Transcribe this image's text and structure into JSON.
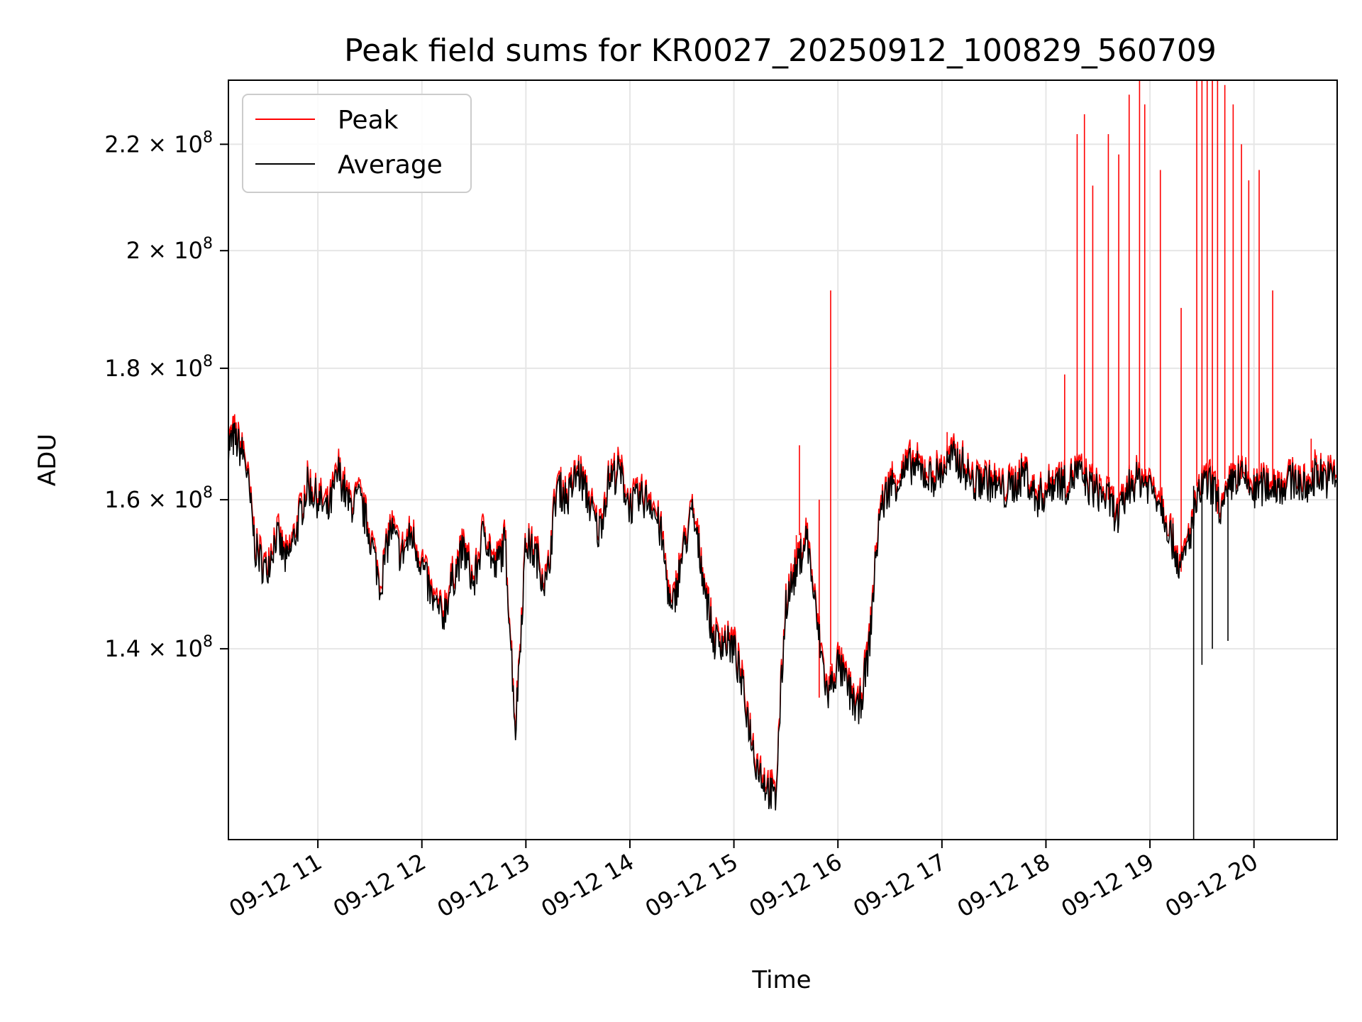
{
  "chart_data": {
    "type": "line",
    "title": "Peak field sums for KR0027_20250912_100829_560709",
    "xlabel": "Time",
    "ylabel": "ADU",
    "x_range": [
      "09-12 10:08",
      "09-12 20:48"
    ],
    "xlim_hours": [
      10.14,
      20.8
    ],
    "ylim": [
      118000000,
      233000000
    ],
    "y_scale": "log",
    "grid": true,
    "legend": "top-left",
    "x_ticks": [
      "09-12 11",
      "09-12 12",
      "09-12 13",
      "09-12 14",
      "09-12 15",
      "09-12 16",
      "09-12 17",
      "09-12 18",
      "09-12 19",
      "09-12 20"
    ],
    "x_tick_hours": [
      11,
      12,
      13,
      14,
      15,
      16,
      17,
      18,
      19,
      20
    ],
    "y_ticks": [
      {
        "value": 140000000,
        "mantissa": "1.4",
        "exp": "8"
      },
      {
        "value": 160000000,
        "mantissa": "1.6",
        "exp": "8"
      },
      {
        "value": 180000000,
        "mantissa": "1.8",
        "exp": "8"
      },
      {
        "value": 200000000,
        "mantissa": "2",
        "exp": "8"
      },
      {
        "value": 220000000,
        "mantissa": "2.2",
        "exp": "8"
      }
    ],
    "series": [
      {
        "name": "Peak",
        "color": "#ff0000"
      },
      {
        "name": "Average",
        "color": "#000000"
      }
    ],
    "x_hours": [
      10.14,
      10.2,
      10.3,
      10.4,
      10.5,
      10.6,
      10.7,
      10.8,
      10.9,
      11.0,
      11.1,
      11.2,
      11.3,
      11.4,
      11.5,
      11.6,
      11.7,
      11.8,
      11.9,
      12.0,
      12.1,
      12.2,
      12.3,
      12.4,
      12.5,
      12.6,
      12.7,
      12.8,
      12.9,
      13.0,
      13.1,
      13.2,
      13.3,
      13.4,
      13.5,
      13.6,
      13.7,
      13.8,
      13.9,
      14.0,
      14.1,
      14.2,
      14.3,
      14.4,
      14.5,
      14.6,
      14.7,
      14.8,
      14.9,
      15.0,
      15.1,
      15.2,
      15.3,
      15.4,
      15.5,
      15.6,
      15.7,
      15.8,
      15.9,
      16.0,
      16.1,
      16.2,
      16.3,
      16.4,
      16.5,
      16.6,
      16.7,
      16.8,
      16.9,
      17.0,
      17.1,
      17.2,
      17.3,
      17.4,
      17.5,
      17.6,
      17.7,
      17.8,
      17.9,
      18.0,
      18.1,
      18.2,
      18.3,
      18.4,
      18.5,
      18.6,
      18.7,
      18.8,
      18.9,
      19.0,
      19.1,
      19.2,
      19.3,
      19.4,
      19.5,
      19.6,
      19.7,
      19.8,
      19.9,
      20.0,
      20.1,
      20.2,
      20.3,
      20.4,
      20.5,
      20.6,
      20.7,
      20.8
    ],
    "average_values": [
      168000000,
      169000000,
      166000000,
      153000000,
      150000000,
      155000000,
      151000000,
      156000000,
      162000000,
      160000000,
      158000000,
      164000000,
      159000000,
      160000000,
      155000000,
      148000000,
      156000000,
      152000000,
      155000000,
      151000000,
      146000000,
      144000000,
      149000000,
      153000000,
      148000000,
      156000000,
      150000000,
      154000000,
      130000000,
      154000000,
      152000000,
      148000000,
      162000000,
      160000000,
      164000000,
      160000000,
      155000000,
      163000000,
      164000000,
      159000000,
      160000000,
      160000000,
      155000000,
      144000000,
      152000000,
      158000000,
      150000000,
      141000000,
      141000000,
      140000000,
      134000000,
      127000000,
      124000000,
      122000000,
      146000000,
      150000000,
      155000000,
      143000000,
      134000000,
      138000000,
      135000000,
      132000000,
      140000000,
      158000000,
      162000000,
      163000000,
      165000000,
      164000000,
      163000000,
      164000000,
      166000000,
      165000000,
      162000000,
      163000000,
      162000000,
      161000000,
      162000000,
      164000000,
      160000000,
      161000000,
      163000000,
      162000000,
      164000000,
      162000000,
      161000000,
      160000000,
      157000000,
      162000000,
      163000000,
      162000000,
      160000000,
      155000000,
      150000000,
      156000000,
      162000000,
      162000000,
      158000000,
      163000000,
      163000000,
      161000000,
      162000000,
      162000000,
      162000000,
      163000000,
      161000000,
      164000000,
      163000000,
      163000000
    ],
    "peak_spikes": [
      {
        "x_hours": 15.6,
        "value": 155000000
      },
      {
        "x_hours": 15.63,
        "value": 168000000
      },
      {
        "x_hours": 15.82,
        "value": 160000000
      },
      {
        "x_hours": 15.93,
        "value": 193000000
      },
      {
        "x_hours": 17.05,
        "value": 170000000
      },
      {
        "x_hours": 18.18,
        "value": 179000000
      },
      {
        "x_hours": 18.3,
        "value": 222000000
      },
      {
        "x_hours": 18.37,
        "value": 226000000
      },
      {
        "x_hours": 18.45,
        "value": 212000000
      },
      {
        "x_hours": 18.6,
        "value": 222000000
      },
      {
        "x_hours": 18.7,
        "value": 218000000
      },
      {
        "x_hours": 18.8,
        "value": 230000000
      },
      {
        "x_hours": 18.9,
        "value": 233000000
      },
      {
        "x_hours": 18.95,
        "value": 228000000
      },
      {
        "x_hours": 19.1,
        "value": 215000000
      },
      {
        "x_hours": 19.3,
        "value": 190000000
      },
      {
        "x_hours": 19.45,
        "value": 233000000
      },
      {
        "x_hours": 19.5,
        "value": 233000000
      },
      {
        "x_hours": 19.55,
        "value": 233000000
      },
      {
        "x_hours": 19.6,
        "value": 233000000
      },
      {
        "x_hours": 19.65,
        "value": 233000000
      },
      {
        "x_hours": 19.72,
        "value": 232000000
      },
      {
        "x_hours": 19.8,
        "value": 228000000
      },
      {
        "x_hours": 19.88,
        "value": 220000000
      },
      {
        "x_hours": 19.95,
        "value": 213000000
      },
      {
        "x_hours": 20.05,
        "value": 215000000
      },
      {
        "x_hours": 20.18,
        "value": 193000000
      },
      {
        "x_hours": 20.55,
        "value": 169000000
      },
      {
        "x_hours": 20.8,
        "value": 168000000
      }
    ],
    "average_dips": [
      {
        "x_hours": 19.42,
        "value": 118000000
      },
      {
        "x_hours": 19.5,
        "value": 138000000
      },
      {
        "x_hours": 19.6,
        "value": 140000000
      },
      {
        "x_hours": 19.75,
        "value": 141000000
      }
    ]
  }
}
